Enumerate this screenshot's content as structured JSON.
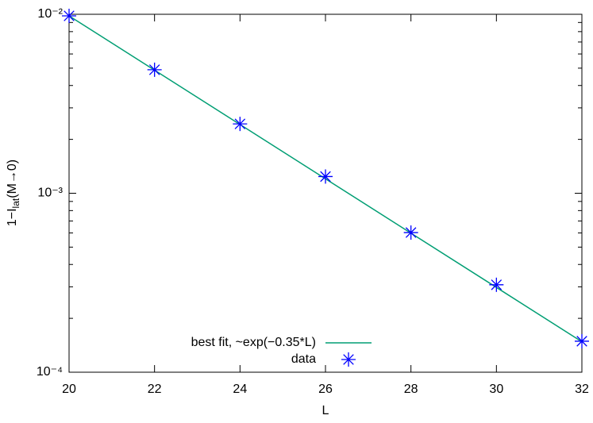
{
  "chart_data": {
    "type": "line",
    "log_y": true,
    "xlabel": "L",
    "ylabel": [
      "1−I",
      "lat",
      "(M→0)"
    ],
    "xlim": [
      20,
      32
    ],
    "xticks": [
      20,
      22,
      24,
      26,
      28,
      30,
      32
    ],
    "ylim": [
      0.0001,
      0.01
    ],
    "yticks": [
      {
        "value": 0.0001,
        "label": "10⁻⁴"
      },
      {
        "value": 0.001,
        "label": "10⁻³"
      },
      {
        "value": 0.01,
        "label": "10⁻²"
      }
    ],
    "minor_yticks": [
      0.0002,
      0.0003,
      0.0004,
      0.0005,
      0.0006,
      0.0007,
      0.0008,
      0.0009,
      0.002,
      0.003,
      0.004,
      0.005,
      0.006,
      0.007,
      0.008,
      0.009
    ],
    "legend": "bottom-left",
    "series": [
      {
        "name": "best fit, ~exp(−0.35*L)",
        "style": "line",
        "color": "#009e73",
        "x": [
          20,
          32
        ],
        "values": [
          0.0098,
          0.000148
        ]
      },
      {
        "name": "data",
        "style": "points",
        "color": "#0000ff",
        "x": [
          20,
          22,
          24,
          26,
          28,
          30,
          32
        ],
        "values": [
          0.0098,
          0.0049,
          0.00244,
          0.00124,
          0.000603,
          0.000308,
          0.000149
        ]
      }
    ]
  }
}
